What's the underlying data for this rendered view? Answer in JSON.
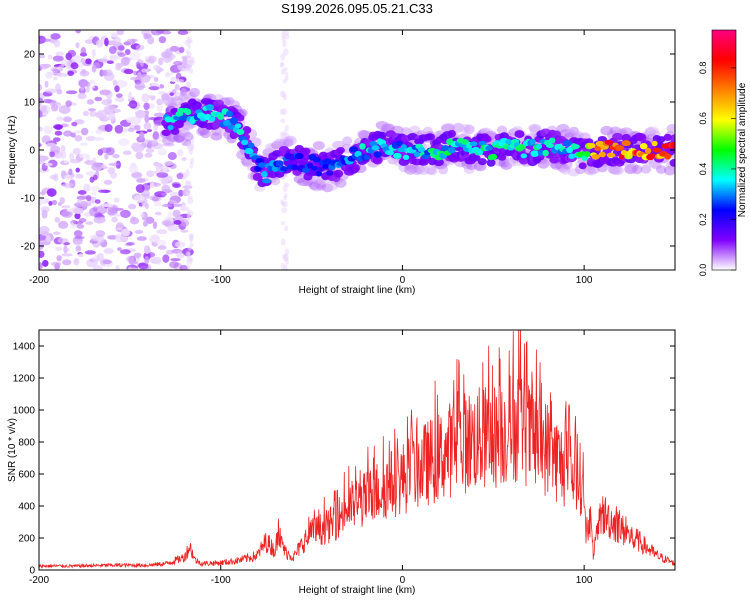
{
  "figure": {
    "title": "S199.2026.095.05.21.C33"
  },
  "chart_data": [
    {
      "type": "heatmap",
      "title": "S199.2026.095.05.21.C33",
      "xlabel": "Height of straight line (km)",
      "ylabel": "Frequency (Hz)",
      "xlim": [
        -200,
        150
      ],
      "ylim": [
        -25,
        25
      ],
      "x_ticks": [
        -200,
        -100,
        0,
        100
      ],
      "y_ticks": [
        -20,
        -10,
        0,
        10,
        20
      ],
      "colorbar": {
        "label": "Normalized spectral amplitude",
        "range": [
          0.0,
          0.95
        ],
        "ticks": [
          0.0,
          0.2,
          0.4,
          0.6,
          0.8
        ],
        "colors": [
          "#ffffff",
          "#8000ff",
          "#0000ff",
          "#00ffff",
          "#00ff00",
          "#ffff00",
          "#ff8000",
          "#ff0000",
          "#ff0080"
        ]
      },
      "ridge": {
        "x": [
          -130,
          -120,
          -110,
          -100,
          -90,
          -85,
          -80,
          -75,
          -70,
          -60,
          -50,
          -40,
          -30,
          -20,
          -10,
          0,
          10,
          20,
          30,
          40,
          50,
          60,
          70,
          80,
          90,
          100,
          110,
          120,
          130,
          140,
          150
        ],
        "freq": [
          6,
          7,
          8,
          7,
          5,
          1,
          -3,
          -5,
          -3,
          -2,
          -3,
          -4,
          -2,
          0,
          1,
          0,
          0,
          0,
          1,
          0,
          0,
          1,
          0,
          1,
          0,
          -1,
          0,
          0,
          0,
          0,
          0
        ],
        "amplitude": [
          0.35,
          0.35,
          0.35,
          0.35,
          0.4,
          0.3,
          0.3,
          0.3,
          0.3,
          0.25,
          0.25,
          0.25,
          0.3,
          0.35,
          0.35,
          0.35,
          0.35,
          0.4,
          0.4,
          0.4,
          0.4,
          0.4,
          0.4,
          0.4,
          0.4,
          0.45,
          0.8,
          0.8,
          0.8,
          0.8,
          0.8
        ]
      },
      "noise_region": [
        -200,
        -130
      ]
    },
    {
      "type": "line",
      "xlabel": "Height of straight line (km)",
      "ylabel": "SNR (10 * v/v)",
      "xlim": [
        -200,
        150
      ],
      "ylim": [
        0,
        1500
      ],
      "x_ticks": [
        -200,
        -100,
        0,
        100
      ],
      "y_ticks": [
        0,
        200,
        400,
        600,
        800,
        1000,
        1200,
        1400
      ],
      "series": [
        {
          "name": "SNR",
          "color": "#ee2222",
          "x": [
            -200,
            -180,
            -160,
            -140,
            -130,
            -120,
            -117,
            -114,
            -110,
            -100,
            -90,
            -80,
            -75,
            -70,
            -68,
            -65,
            -60,
            -50,
            -40,
            -30,
            -20,
            -10,
            0,
            10,
            20,
            30,
            40,
            50,
            60,
            65,
            70,
            80,
            90,
            100,
            101,
            103,
            105,
            110,
            120,
            130,
            140,
            150
          ],
          "values": [
            25,
            25,
            30,
            30,
            40,
            80,
            150,
            60,
            40,
            45,
            60,
            90,
            180,
            120,
            260,
            120,
            80,
            250,
            300,
            420,
            480,
            560,
            620,
            700,
            760,
            850,
            880,
            900,
            960,
            1000,
            900,
            820,
            680,
            600,
            150,
            400,
            100,
            380,
            280,
            180,
            90,
            40
          ]
        }
      ]
    }
  ]
}
